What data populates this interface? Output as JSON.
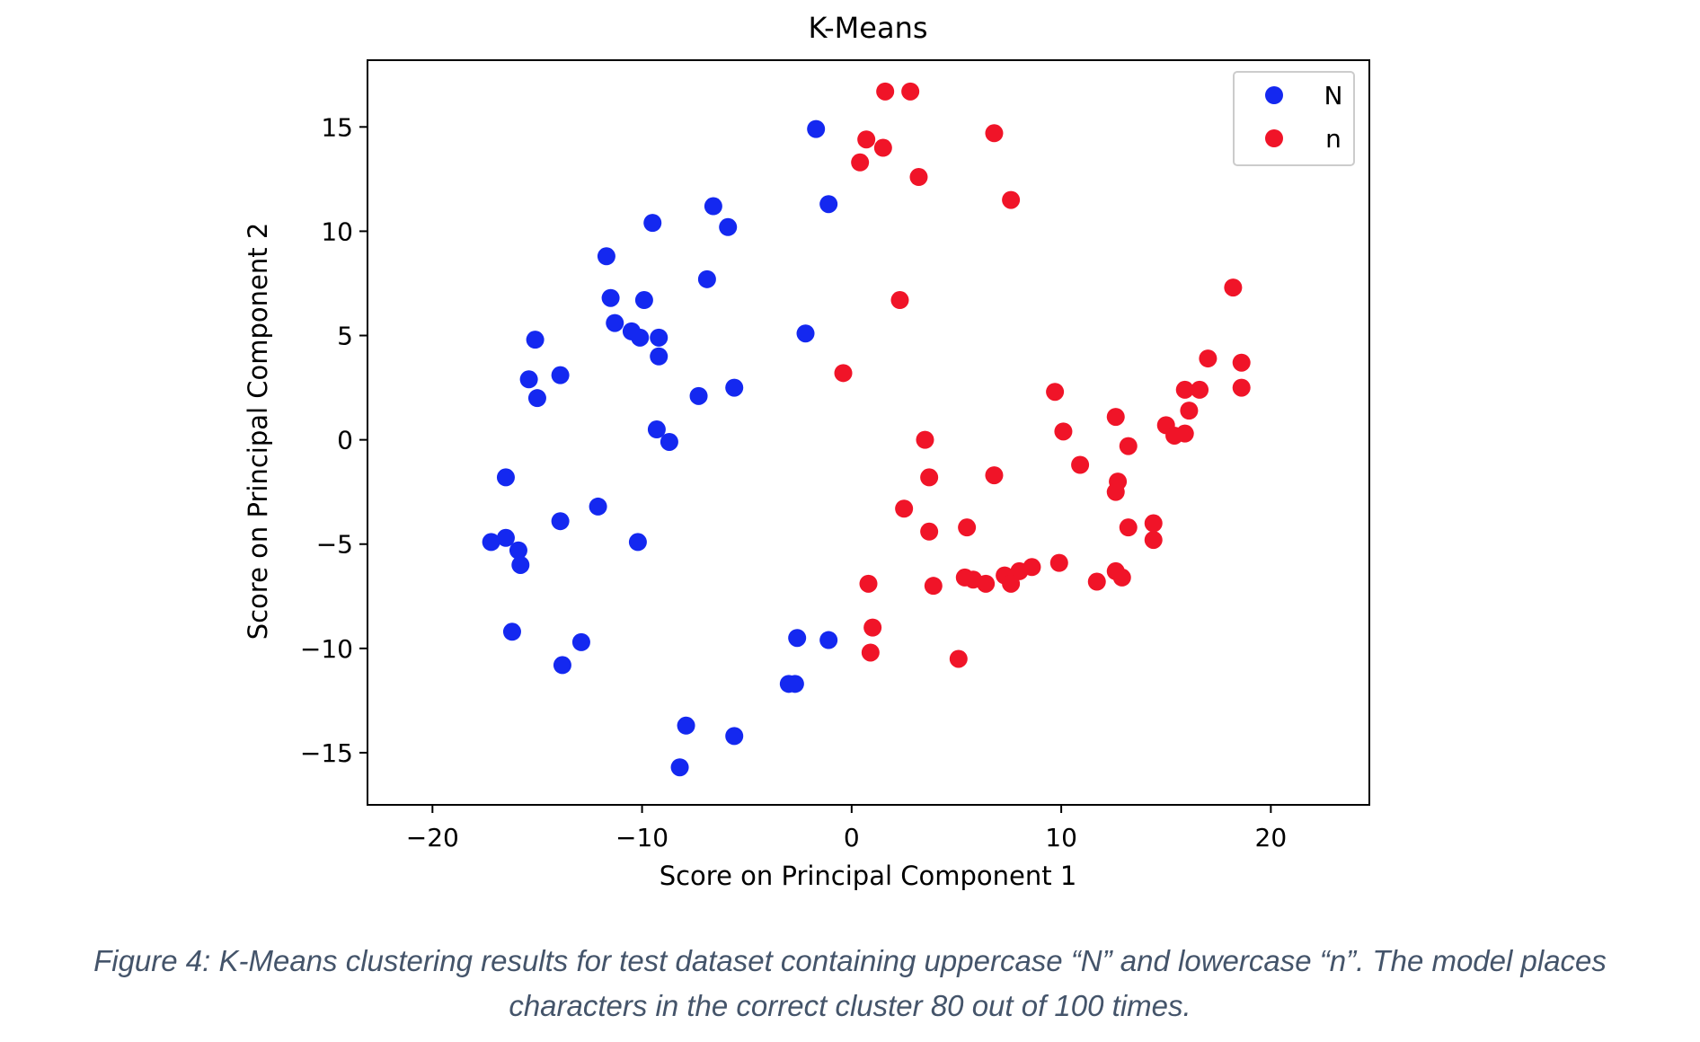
{
  "chart_data": {
    "type": "scatter",
    "title": "K-Means",
    "xlabel": "Score on Principal Component 1",
    "ylabel": "Score on Principal Component 2",
    "xlim": [
      -23.1,
      24.7
    ],
    "ylim": [
      -17.5,
      18.2
    ],
    "xticks": [
      -20,
      -10,
      0,
      10,
      20
    ],
    "xtick_labels": [
      "−20",
      "−10",
      "0",
      "10",
      "20"
    ],
    "yticks": [
      15,
      10,
      5,
      0,
      -5,
      -10,
      -15
    ],
    "ytick_labels": [
      "15",
      "10",
      "5",
      "0",
      "−5",
      "−10",
      "−15"
    ],
    "legend_position": "top-right",
    "grid": false,
    "series": [
      {
        "name": "N",
        "color": "#1428f0",
        "points": [
          [
            -1.7,
            14.9
          ],
          [
            -1.1,
            11.3
          ],
          [
            -6.6,
            11.2
          ],
          [
            -5.9,
            10.2
          ],
          [
            -9.5,
            10.4
          ],
          [
            -11.7,
            8.8
          ],
          [
            -6.9,
            7.7
          ],
          [
            -11.5,
            6.8
          ],
          [
            -9.9,
            6.7
          ],
          [
            -11.3,
            5.6
          ],
          [
            -10.5,
            5.2
          ],
          [
            -10.1,
            4.9
          ],
          [
            -9.2,
            4.9
          ],
          [
            -9.2,
            4.0
          ],
          [
            -2.2,
            5.1
          ],
          [
            -15.1,
            4.8
          ],
          [
            -13.9,
            3.1
          ],
          [
            -15.4,
            2.9
          ],
          [
            -15.0,
            2.0
          ],
          [
            -7.3,
            2.1
          ],
          [
            -5.6,
            2.5
          ],
          [
            -9.3,
            0.5
          ],
          [
            -8.7,
            -0.1
          ],
          [
            -16.5,
            -1.8
          ],
          [
            -12.1,
            -3.2
          ],
          [
            -13.9,
            -3.9
          ],
          [
            -10.2,
            -4.9
          ],
          [
            -17.2,
            -4.9
          ],
          [
            -16.5,
            -4.7
          ],
          [
            -15.9,
            -5.3
          ],
          [
            -15.8,
            -6.0
          ],
          [
            -16.2,
            -9.2
          ],
          [
            -12.9,
            -9.7
          ],
          [
            -13.8,
            -10.8
          ],
          [
            -2.6,
            -9.5
          ],
          [
            -1.1,
            -9.6
          ],
          [
            -3.0,
            -11.7
          ],
          [
            -2.7,
            -11.7
          ],
          [
            -7.9,
            -13.7
          ],
          [
            -5.6,
            -14.2
          ],
          [
            -8.2,
            -15.7
          ]
        ]
      },
      {
        "name": "n",
        "color": "#f01428",
        "points": [
          [
            1.6,
            16.7
          ],
          [
            2.8,
            16.7
          ],
          [
            0.7,
            14.4
          ],
          [
            1.5,
            14.0
          ],
          [
            0.4,
            13.3
          ],
          [
            3.2,
            12.6
          ],
          [
            6.8,
            14.7
          ],
          [
            7.6,
            11.5
          ],
          [
            2.3,
            6.7
          ],
          [
            -0.4,
            3.2
          ],
          [
            18.2,
            7.3
          ],
          [
            17.0,
            3.9
          ],
          [
            18.6,
            3.7
          ],
          [
            16.6,
            2.4
          ],
          [
            18.6,
            2.5
          ],
          [
            15.9,
            2.4
          ],
          [
            16.1,
            1.4
          ],
          [
            9.7,
            2.3
          ],
          [
            12.6,
            1.1
          ],
          [
            15.0,
            0.7
          ],
          [
            15.4,
            0.2
          ],
          [
            15.9,
            0.3
          ],
          [
            10.1,
            0.4
          ],
          [
            13.2,
            -0.3
          ],
          [
            3.5,
            0.0
          ],
          [
            10.9,
            -1.2
          ],
          [
            12.7,
            -2.0
          ],
          [
            12.6,
            -2.5
          ],
          [
            3.7,
            -1.8
          ],
          [
            6.8,
            -1.7
          ],
          [
            2.5,
            -3.3
          ],
          [
            14.4,
            -4.0
          ],
          [
            13.2,
            -4.2
          ],
          [
            14.4,
            -4.8
          ],
          [
            5.5,
            -4.2
          ],
          [
            3.7,
            -4.4
          ],
          [
            9.9,
            -5.9
          ],
          [
            12.6,
            -6.3
          ],
          [
            12.9,
            -6.6
          ],
          [
            11.7,
            -6.8
          ],
          [
            8.6,
            -6.1
          ],
          [
            8.0,
            -6.3
          ],
          [
            7.3,
            -6.5
          ],
          [
            7.6,
            -6.9
          ],
          [
            5.4,
            -6.6
          ],
          [
            5.8,
            -6.7
          ],
          [
            6.4,
            -6.9
          ],
          [
            0.8,
            -6.9
          ],
          [
            3.9,
            -7.0
          ],
          [
            1.0,
            -9.0
          ],
          [
            0.9,
            -10.2
          ],
          [
            5.1,
            -10.5
          ]
        ]
      }
    ]
  },
  "caption": {
    "line1": "Figure 4: K-Means clustering results for test dataset containing uppercase “N” and lowercase “n”. The model places",
    "line2": "characters in the correct cluster 80 out of 100 times."
  }
}
